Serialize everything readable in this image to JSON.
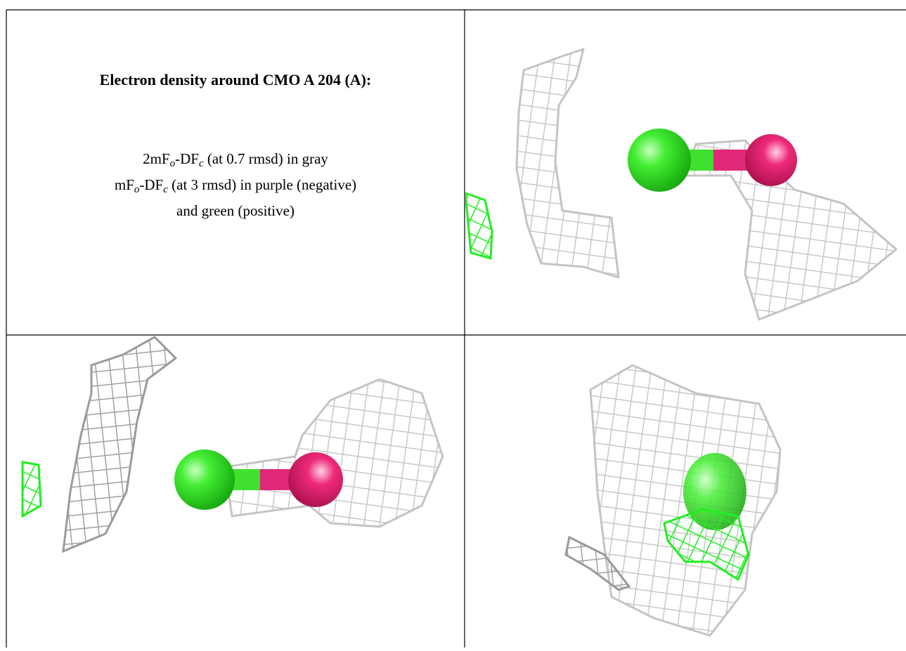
{
  "title": "Electron density around CMO A 204 (A):",
  "legend": {
    "line1": [
      "2mF",
      "o",
      "-DF",
      "c",
      " (at 0.7 rmsd) in gray"
    ],
    "line2": [
      "mF",
      "o",
      "-DF",
      "c",
      " (at 3 rmsd) in purple (negative)"
    ],
    "line3": "and green (positive)"
  }
}
